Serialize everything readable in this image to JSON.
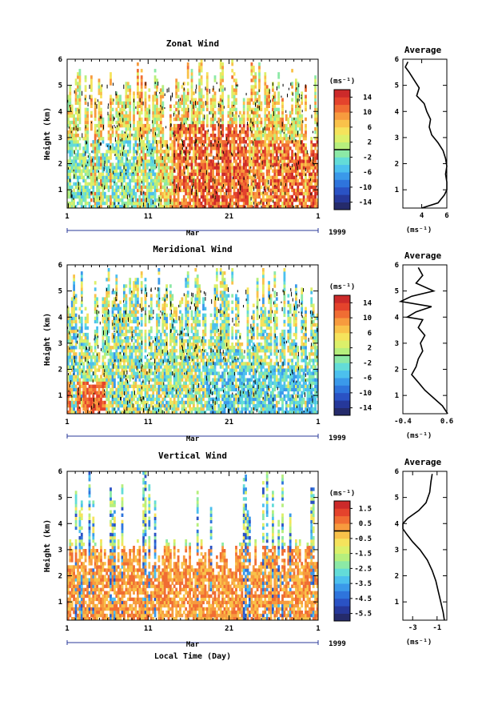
{
  "chart_data": [
    {
      "type": "heatmap",
      "title": "Zonal Wind",
      "ylabel": "Height (km)",
      "yticks": [
        "1",
        "2",
        "3",
        "4",
        "5",
        "6"
      ],
      "ylim": [
        0.3,
        6
      ],
      "xticks": [
        "1",
        "11",
        "21",
        "1"
      ],
      "xlim": [
        1,
        32
      ],
      "month_label": "Mar",
      "year_label": "1999",
      "colorbar": {
        "unit": "(ms⁻¹)",
        "ticks": [
          "14",
          "10",
          "6",
          "2",
          "-2",
          "-6",
          "-10",
          "-14"
        ],
        "range": [
          -16,
          16
        ]
      },
      "average_profile": {
        "title": "Average",
        "xlabel": "(ms⁻¹)",
        "xticks": [
          "4",
          "6"
        ],
        "xlim": [
          2.5,
          6
        ],
        "yticks": [
          "1",
          "2",
          "3",
          "4",
          "5",
          "6"
        ],
        "height": [
          0.3,
          0.5,
          0.8,
          1.0,
          1.3,
          1.6,
          1.9,
          2.2,
          2.5,
          2.8,
          3.1,
          3.4,
          3.7,
          4.0,
          4.3,
          4.6,
          4.9,
          5.2,
          5.5,
          5.7,
          5.9
        ],
        "value": [
          4.0,
          5.3,
          5.8,
          6.0,
          6.0,
          5.9,
          6.0,
          5.9,
          5.7,
          5.3,
          4.8,
          4.6,
          4.7,
          4.4,
          4.2,
          3.6,
          3.8,
          3.4,
          3.0,
          2.7,
          2.9
        ]
      }
    },
    {
      "type": "heatmap",
      "title": "Meridional Wind",
      "ylabel": "Height (km)",
      "yticks": [
        "1",
        "2",
        "3",
        "4",
        "5",
        "6"
      ],
      "ylim": [
        0.3,
        6
      ],
      "xticks": [
        "1",
        "11",
        "21",
        "1"
      ],
      "xlim": [
        1,
        32
      ],
      "month_label": "Mar",
      "year_label": "1999",
      "colorbar": {
        "unit": "(ms⁻¹)",
        "ticks": [
          "14",
          "10",
          "6",
          "2",
          "-2",
          "-6",
          "-10",
          "-14"
        ],
        "range": [
          -16,
          16
        ]
      },
      "average_profile": {
        "title": "Average",
        "xlabel": "(ms⁻¹)",
        "xticks": [
          "-0.4",
          "0.6"
        ],
        "xlim": [
          -0.4,
          0.6
        ],
        "yticks": [
          "1",
          "2",
          "3",
          "4",
          "5",
          "6"
        ],
        "height": [
          0.3,
          0.6,
          0.9,
          1.2,
          1.5,
          1.8,
          2.1,
          2.4,
          2.7,
          3.0,
          3.3,
          3.6,
          3.9,
          4.0,
          4.2,
          4.4,
          4.6,
          4.8,
          5.0,
          5.3,
          5.6,
          5.9
        ],
        "value": [
          0.62,
          0.5,
          0.3,
          0.1,
          -0.05,
          -0.2,
          -0.1,
          -0.05,
          0.05,
          0.0,
          0.1,
          -0.05,
          0.05,
          -0.3,
          -0.1,
          0.25,
          -0.45,
          -0.2,
          0.3,
          -0.1,
          0.05,
          -0.05
        ]
      }
    },
    {
      "type": "heatmap",
      "title": "Vertical Wind",
      "ylabel": "Height (km)",
      "yticks": [
        "1",
        "2",
        "3",
        "4",
        "5",
        "6"
      ],
      "ylim": [
        0.3,
        6
      ],
      "xticks": [
        "1",
        "11",
        "21",
        "1"
      ],
      "xlim": [
        1,
        32
      ],
      "month_label": "Mar",
      "year_label": "1999",
      "xlabel": "Local Time (Day)",
      "colorbar": {
        "unit": "(ms⁻¹)",
        "ticks": [
          "1.5",
          "0.5",
          "-0.5",
          "-1.5",
          "-2.5",
          "-3.5",
          "-4.5",
          "-5.5"
        ],
        "range": [
          -6,
          2
        ]
      },
      "average_profile": {
        "title": "Average",
        "xlabel": "(ms⁻¹)",
        "xticks": [
          "-3",
          "-1"
        ],
        "xlim": [
          -3.8,
          -0.2
        ],
        "yticks": [
          "1",
          "2",
          "3",
          "4",
          "5",
          "6"
        ],
        "height": [
          0.3,
          0.6,
          1.0,
          1.4,
          1.8,
          2.2,
          2.6,
          3.0,
          3.3,
          3.6,
          3.8,
          4.0,
          4.2,
          4.5,
          4.8,
          5.2,
          5.6,
          5.9
        ],
        "value": [
          -0.4,
          -0.5,
          -0.7,
          -0.9,
          -1.1,
          -1.4,
          -1.8,
          -2.4,
          -3.0,
          -3.5,
          -3.8,
          -3.8,
          -3.4,
          -2.5,
          -1.9,
          -1.6,
          -1.5,
          -1.4
        ]
      }
    }
  ]
}
